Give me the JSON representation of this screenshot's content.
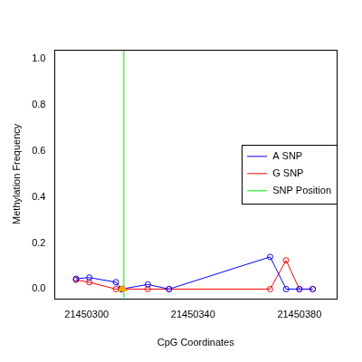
{
  "chart_data": {
    "type": "line",
    "x_label": "CpG Coordinates",
    "y_label": "Methylation Frequency",
    "xlim": [
      21450288,
      21450394
    ],
    "xticks": [
      21450300,
      21450340,
      21450380
    ],
    "ylim": [
      -0.04,
      1.04
    ],
    "yticks": [
      {
        "value": 0,
        "label": "0.0"
      },
      0.2,
      0.4,
      0.6,
      0.8,
      {
        "value": 1,
        "label": "1.0"
      }
    ],
    "grid": false,
    "legend": "right",
    "series": [
      {
        "name": "A SNP",
        "color": "#0000ff",
        "marker": "circle",
        "line_style": "solid",
        "x": [
          21450296,
          21450301,
          21450311,
          21450313,
          21450323,
          21450331,
          21450369,
          21450375,
          21450380,
          21450385
        ],
        "values": [
          0.045,
          0.05,
          0.03,
          0,
          0.02,
          0,
          0.14,
          0,
          0,
          0
        ]
      },
      {
        "name": "G SNP",
        "color": "#ff0000",
        "marker": "circle",
        "line_style": "solid",
        "x": [
          21450296,
          21450301,
          21450311,
          21450313,
          21450323,
          21450331,
          21450369,
          21450375,
          21450380,
          21450385
        ],
        "values": [
          0.04,
          0.03,
          0,
          0,
          0,
          0,
          0,
          0.125,
          0,
          0
        ]
      },
      {
        "name": "SNP Position",
        "color": "#00ee00",
        "type": "vline",
        "line_style": "solid",
        "x": [
          21450314
        ]
      },
      {
        "color": "#ffa500",
        "type": "scatter",
        "marker": "triangle",
        "x": [
          21450313,
          21450314
        ],
        "values": [
          0,
          0
        ]
      }
    ]
  }
}
